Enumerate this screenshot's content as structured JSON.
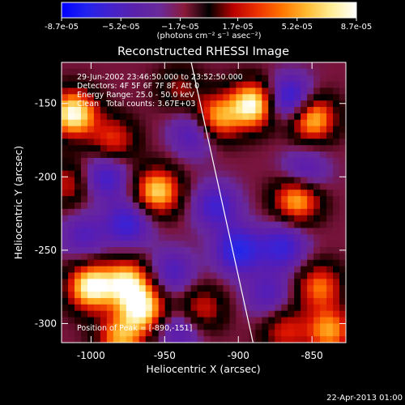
{
  "chart_data": {
    "type": "heatmap",
    "title": "Reconstructed RHESSI Image",
    "xlabel": "Heliocentric X (arcsec)",
    "ylabel": "Heliocentric Y (arcsec)",
    "xlim": [
      -1020,
      -827
    ],
    "ylim": [
      -313,
      -122
    ],
    "x_ticks": [
      -1000,
      -950,
      -900,
      -850
    ],
    "x_tick_labels": [
      "-1000",
      "-950",
      "-900",
      "-850"
    ],
    "y_ticks": [
      -150,
      -200,
      -250,
      -300
    ],
    "y_tick_labels": [
      "-150",
      "-200",
      "-250",
      "-300"
    ],
    "colorbar": {
      "range": [
        -8.7e-05,
        8.7e-05
      ],
      "tick_values": [
        -8.7e-05,
        -5.2e-05,
        -1.7e-05,
        1.7e-05,
        5.2e-05,
        8.7e-05
      ],
      "tick_labels": [
        "-8.7e-05",
        "−5.2e-05",
        "−1.7e-05",
        "1.7e-05",
        "5.2e-05",
        "8.7e-05"
      ],
      "unit_label": "(photons cm⁻² s⁻¹ asec⁻²)",
      "colormap": [
        "#0000ff",
        "#2222ee",
        "#4422cc",
        "#5a22aa",
        "#6a2a9a",
        "#8a1a3a",
        "#000000",
        "#bb0000",
        "#ee3300",
        "#ff7700",
        "#ffbb33",
        "#ffee99",
        "#ffffff"
      ]
    },
    "annotations": [
      "29-Jun-2002 23:46:50.000 to 23:52:50.000",
      "Detectors: 4F 5F 6F 7F 8F, Att 0",
      "Energy Range: 25.0 - 50.0 keV",
      "Clean   Total counts: 3.67E+03",
      "Position of Peak = [-890,-151]"
    ],
    "limb_line": {
      "x": [
        -932,
        -890
      ],
      "y": [
        -122,
        -313
      ]
    },
    "peak": {
      "x": -890,
      "y": -151
    },
    "sources": [
      {
        "x": -1012,
        "y": -157,
        "amp": 1.0
      },
      {
        "x": -1000,
        "y": -275,
        "amp": 1.0
      },
      {
        "x": -975,
        "y": -272,
        "amp": 0.85
      },
      {
        "x": -965,
        "y": -290,
        "amp": 0.9
      },
      {
        "x": -955,
        "y": -210,
        "amp": 0.85
      },
      {
        "x": -915,
        "y": -160,
        "amp": 0.75
      },
      {
        "x": -890,
        "y": -151,
        "amp": 1.0
      },
      {
        "x": -860,
        "y": -215,
        "amp": 0.8
      },
      {
        "x": -850,
        "y": -160,
        "amp": 0.85
      },
      {
        "x": -845,
        "y": -275,
        "amp": 0.6
      },
      {
        "x": -838,
        "y": -305,
        "amp": 0.7
      },
      {
        "x": -925,
        "y": -290,
        "amp": 0.45
      },
      {
        "x": -1015,
        "y": -205,
        "amp": 0.4
      },
      {
        "x": -985,
        "y": -175,
        "amp": 0.5
      },
      {
        "x": -980,
        "y": -310,
        "amp": 0.7
      },
      {
        "x": -868,
        "y": -305,
        "amp": 0.45
      },
      {
        "x": -940,
        "y": -140,
        "amp": 0.3
      },
      {
        "x": -990,
        "y": -200,
        "amp": -0.55
      },
      {
        "x": -975,
        "y": -232,
        "amp": -0.6
      },
      {
        "x": -930,
        "y": -170,
        "amp": -0.5
      },
      {
        "x": -900,
        "y": -250,
        "amp": -0.75
      },
      {
        "x": -915,
        "y": -220,
        "amp": -0.55
      },
      {
        "x": -870,
        "y": -248,
        "amp": -0.6
      },
      {
        "x": -865,
        "y": -147,
        "amp": -0.75
      },
      {
        "x": -855,
        "y": -197,
        "amp": -0.45
      },
      {
        "x": -945,
        "y": -265,
        "amp": -0.45
      },
      {
        "x": -880,
        "y": -280,
        "amp": -0.4
      },
      {
        "x": -1005,
        "y": -240,
        "amp": -0.4
      },
      {
        "x": -940,
        "y": -305,
        "amp": -0.4
      }
    ]
  },
  "footer": {
    "timestamp": "22-Apr-2013 01:00"
  }
}
